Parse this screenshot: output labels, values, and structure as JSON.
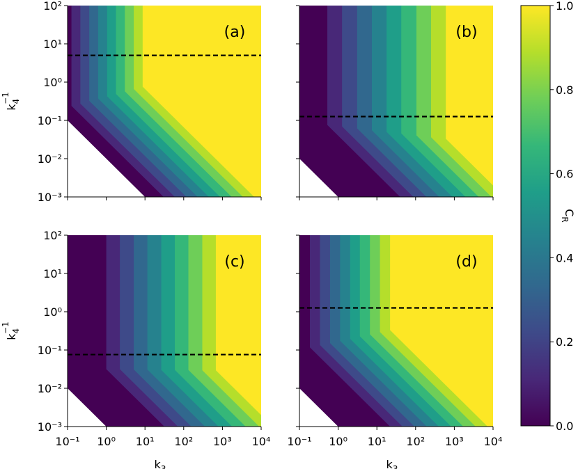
{
  "chart_data": {
    "type": "contour",
    "xscale": "log",
    "yscale": "log",
    "xlabel": {
      "base": "k",
      "sub": "3"
    },
    "ylabel": {
      "base": "k",
      "sub": "4",
      "sup": "−1"
    },
    "xlim": [
      0.1,
      10000
    ],
    "ylim": [
      0.001,
      100
    ],
    "xticks": [
      {
        "value": 0.1,
        "label": "10⁻¹"
      },
      {
        "value": 1,
        "label": "10⁰"
      },
      {
        "value": 10,
        "label": "10¹"
      },
      {
        "value": 100,
        "label": "10²"
      },
      {
        "value": 1000,
        "label": "10³"
      },
      {
        "value": 10000,
        "label": "10⁴"
      }
    ],
    "yticks": [
      {
        "value": 0.001,
        "label": "10⁻³"
      },
      {
        "value": 0.01,
        "label": "10⁻²"
      },
      {
        "value": 0.1,
        "label": "10⁻¹"
      },
      {
        "value": 1,
        "label": "10⁰"
      },
      {
        "value": 10,
        "label": "10¹"
      },
      {
        "value": 100,
        "label": "10²"
      }
    ],
    "colors": [
      "#440154",
      "#482878",
      "#3e4a89",
      "#31688e",
      "#26828e",
      "#1f9e89",
      "#35b779",
      "#6ece58",
      "#b5de2b",
      "#fde725"
    ],
    "colorbar": {
      "label": {
        "base": "C",
        "sub": "R"
      },
      "lim": [
        0,
        1
      ],
      "ticks": [
        {
          "value": 0,
          "label": "0.0"
        },
        0.2,
        0.4,
        0.6,
        0.8,
        {
          "value": 1,
          "label": "1.0"
        }
      ]
    },
    "panels": [
      {
        "label": "(a)",
        "dashed_y": 5,
        "domain_edge": {
          "x": [
            0.1,
            10
          ],
          "y": [
            0.1,
            0.001
          ]
        },
        "contours": [
          {
            "x": [
              0.126,
              0.126,
              30.2
            ],
            "y": [
              100,
              0.24,
              0.001
            ]
          },
          {
            "x": [
              0.214,
              0.214,
              58.9
            ],
            "y": [
              100,
              0.275,
              0.001
            ]
          },
          {
            "x": [
              0.363,
              0.363,
              117
            ],
            "y": [
              100,
              0.324,
              0.001
            ]
          },
          {
            "x": [
              0.617,
              0.617,
              229
            ],
            "y": [
              100,
              0.372,
              0.001
            ]
          },
          {
            "x": [
              1.05,
              1.05,
              447
            ],
            "y": [
              100,
              0.427,
              0.001
            ]
          },
          {
            "x": [
              1.78,
              1.78,
              871
            ],
            "y": [
              100,
              0.49,
              0.001
            ]
          },
          {
            "x": [
              3.02,
              3.02,
              1740
            ],
            "y": [
              100,
              0.575,
              0.001
            ]
          },
          {
            "x": [
              5.13,
              5.13,
              3390
            ],
            "y": [
              100,
              0.661,
              0.001
            ]
          },
          {
            "x": [
              8.71,
              8.71,
              6610
            ],
            "y": [
              100,
              0.759,
              0.001
            ]
          }
        ]
      },
      {
        "label": "(b)",
        "dashed_y": 0.126,
        "domain_edge": {
          "x": [
            0.1,
            1
          ],
          "y": [
            0.01,
            0.001
          ]
        },
        "contours": [
          {
            "x": [
              0.525,
              0.525,
              39.8
            ],
            "y": [
              100,
              0.0759,
              0.001
            ]
          },
          {
            "x": [
              1.26,
              1.26,
              87.1
            ],
            "y": [
              100,
              0.0692,
              0.001
            ]
          },
          {
            "x": [
              3.09,
              3.09,
              191
            ],
            "y": [
              100,
              0.0617,
              0.001
            ]
          },
          {
            "x": [
              7.41,
              7.41,
              407
            ],
            "y": [
              100,
              0.055,
              0.001
            ]
          },
          {
            "x": [
              17.8,
              17.8,
              891
            ],
            "y": [
              100,
              0.0501,
              0.001
            ]
          },
          {
            "x": [
              42.7,
              42.7,
              1950
            ],
            "y": [
              100,
              0.0457,
              0.001
            ]
          },
          {
            "x": [
              105,
              105,
              4270
            ],
            "y": [
              100,
              0.0407,
              0.001
            ]
          },
          {
            "x": [
              251,
              251,
              9120
            ],
            "y": [
              100,
              0.0363,
              0.001
            ]
          },
          {
            "x": [
              603,
              603,
              10000
            ],
            "y": [
              100,
              0.0331,
              0.002
            ]
          }
        ]
      },
      {
        "label": "(c)",
        "dashed_y": 0.076,
        "domain_edge": {
          "x": [
            0.1,
            1
          ],
          "y": [
            0.01,
            0.001
          ]
        },
        "contours": [
          {
            "x": [
              1,
              1,
              31.6
            ],
            "y": [
              100,
              0.0316,
              0.001
            ]
          },
          {
            "x": [
              2.24,
              2.24,
              70.8
            ],
            "y": [
              100,
              0.0316,
              0.001
            ]
          },
          {
            "x": [
              5.13,
              5.13,
              158
            ],
            "y": [
              100,
              0.0309,
              0.001
            ]
          },
          {
            "x": [
              11.5,
              11.5,
              355
            ],
            "y": [
              100,
              0.0309,
              0.001
            ]
          },
          {
            "x": [
              26.3,
              26.3,
              794
            ],
            "y": [
              100,
              0.0302,
              0.001
            ]
          },
          {
            "x": [
              58.9,
              58.9,
              1780
            ],
            "y": [
              100,
              0.0302,
              0.001
            ]
          },
          {
            "x": [
              132,
              132,
              3980
            ],
            "y": [
              100,
              0.0302,
              0.001
            ]
          },
          {
            "x": [
              302,
              302,
              8910
            ],
            "y": [
              100,
              0.0295,
              0.001
            ]
          },
          {
            "x": [
              676,
              676,
              10000
            ],
            "y": [
              100,
              0.0295,
              0.002
            ]
          }
        ]
      },
      {
        "label": "(d)",
        "dashed_y": 1.26,
        "domain_edge": {
          "x": [
            0.1,
            1
          ],
          "y": [
            0.01,
            0.001
          ]
        },
        "contours": [
          {
            "x": [
              0.186,
              0.186,
              21.9
            ],
            "y": [
              100,
              0.117,
              0.001
            ]
          },
          {
            "x": [
              0.339,
              0.339,
              45.7
            ],
            "y": [
              100,
              0.135,
              0.001
            ]
          },
          {
            "x": [
              0.617,
              0.617,
              93.3
            ],
            "y": [
              100,
              0.151,
              0.001
            ]
          },
          {
            "x": [
              1.12,
              1.12,
              195
            ],
            "y": [
              100,
              0.174,
              0.001
            ]
          },
          {
            "x": [
              2.04,
              2.04,
              398
            ],
            "y": [
              100,
              0.195,
              0.001
            ]
          },
          {
            "x": [
              3.63,
              3.63,
              832
            ],
            "y": [
              100,
              0.229,
              0.001
            ]
          },
          {
            "x": [
              6.61,
              6.61,
              1700
            ],
            "y": [
              100,
              0.257,
              0.001
            ]
          },
          {
            "x": [
              12.0,
              12.0,
              3550
            ],
            "y": [
              100,
              0.295,
              0.001
            ]
          },
          {
            "x": [
              21.9,
              21.9,
              7240
            ],
            "y": [
              100,
              0.331,
              0.001
            ]
          }
        ]
      }
    ]
  }
}
